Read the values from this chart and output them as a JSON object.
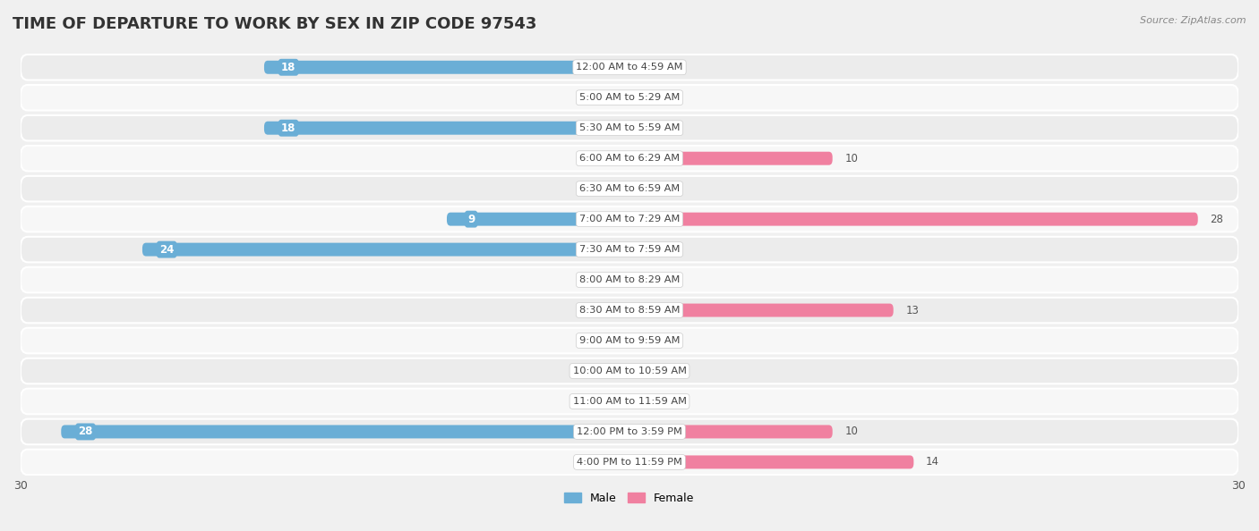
{
  "title": "TIME OF DEPARTURE TO WORK BY SEX IN ZIP CODE 97543",
  "source": "Source: ZipAtlas.com",
  "categories": [
    "12:00 AM to 4:59 AM",
    "5:00 AM to 5:29 AM",
    "5:30 AM to 5:59 AM",
    "6:00 AM to 6:29 AM",
    "6:30 AM to 6:59 AM",
    "7:00 AM to 7:29 AM",
    "7:30 AM to 7:59 AM",
    "8:00 AM to 8:29 AM",
    "8:30 AM to 8:59 AM",
    "9:00 AM to 9:59 AM",
    "10:00 AM to 10:59 AM",
    "11:00 AM to 11:59 AM",
    "12:00 PM to 3:59 PM",
    "4:00 PM to 11:59 PM"
  ],
  "male": [
    18,
    0,
    18,
    0,
    0,
    9,
    24,
    0,
    0,
    0,
    0,
    0,
    28,
    0
  ],
  "female": [
    0,
    0,
    0,
    10,
    0,
    28,
    0,
    0,
    13,
    0,
    0,
    0,
    10,
    14
  ],
  "male_bar_color": "#6aaed6",
  "male_stub_color": "#aacfe8",
  "female_bar_color": "#f080a0",
  "female_stub_color": "#f4b8c8",
  "row_even_color": "#ececec",
  "row_odd_color": "#f7f7f7",
  "background_color": "#f0f0f0",
  "axis_max": 30,
  "title_fontsize": 13,
  "label_fontsize": 8.5,
  "tick_fontsize": 9
}
